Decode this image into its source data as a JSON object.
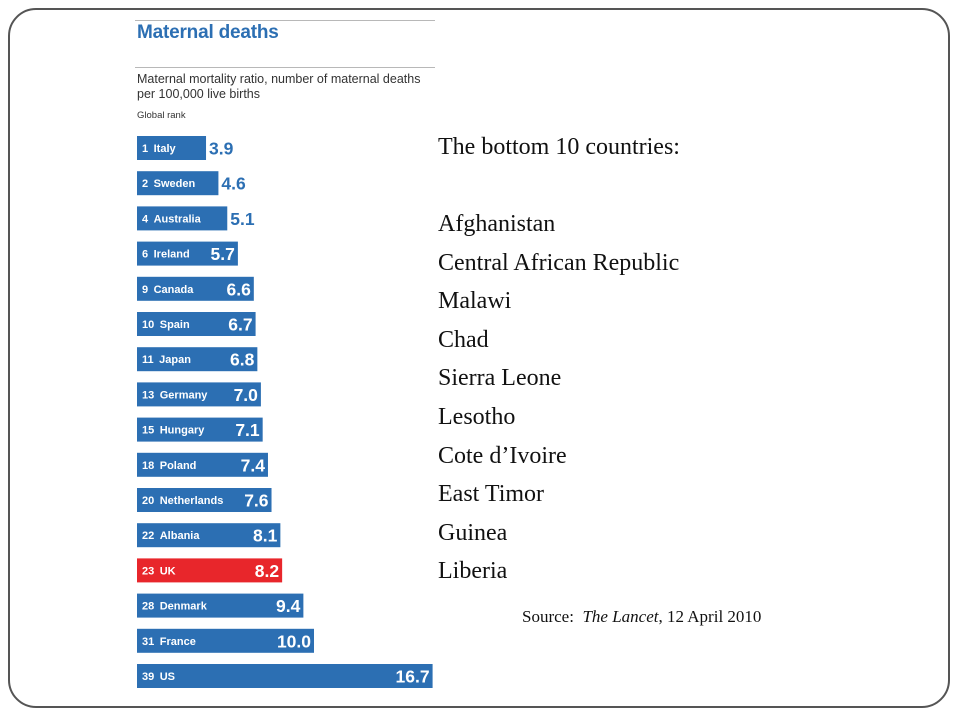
{
  "chart_data": {
    "type": "bar",
    "orientation": "horizontal",
    "title": "Maternal deaths",
    "subtitle": "Maternal mortality ratio, number of maternal deaths per 100,000 live births",
    "rank_label": "Global rank",
    "categories": [
      "Italy",
      "Sweden",
      "Australia",
      "Ireland",
      "Canada",
      "Spain",
      "Japan",
      "Germany",
      "Hungary",
      "Poland",
      "Netherlands",
      "Albania",
      "UK",
      "Denmark",
      "France",
      "US"
    ],
    "ranks": [
      "1",
      "2",
      "4",
      "6",
      "9",
      "10",
      "11",
      "13",
      "15",
      "18",
      "20",
      "22",
      "23",
      "28",
      "31",
      "39"
    ],
    "values": [
      3.9,
      4.6,
      5.1,
      5.7,
      6.6,
      6.7,
      6.8,
      7.0,
      7.1,
      7.4,
      7.6,
      8.1,
      8.2,
      9.4,
      10.0,
      16.7
    ],
    "value_labels": [
      "3.9",
      "4.6",
      "5.1",
      "5.7",
      "6.6",
      "6.7",
      "6.8",
      "7.0",
      "7.1",
      "7.4",
      "7.6",
      "8.1",
      "8.2",
      "9.4",
      "10.0",
      "16.7"
    ],
    "highlight": "UK",
    "colors": {
      "bar": "#2c6fb3",
      "highlight": "#e8262b",
      "title": "#2c6fb3"
    }
  },
  "panel": {
    "heading": "The bottom 10 countries:",
    "countries": [
      "Afghanistan",
      "Central African Republic",
      "Malawi",
      "Chad",
      "Sierra Leone",
      "Lesotho",
      "Cote d’Ivoire",
      "East Timor",
      "Guinea",
      "Liberia"
    ]
  },
  "source": {
    "prefix": "Source:",
    "publication": "The Lancet",
    "date": ", 12 April 2010"
  }
}
